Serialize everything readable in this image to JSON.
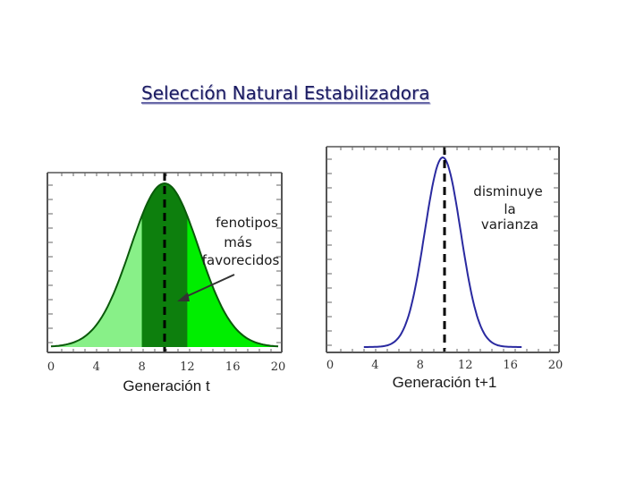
{
  "slide": {
    "title": "Selección Natural Estabilizadora"
  },
  "chart_data": [
    {
      "type": "area",
      "xlabel": "Generación t",
      "ylabel": "",
      "xlim": [
        0,
        20
      ],
      "xticks": [
        "0",
        "4",
        "8",
        "12",
        "16",
        "20"
      ],
      "mean": 10,
      "sd": 3,
      "marked_line_x": 10,
      "regions": [
        {
          "name": "outer-tails",
          "from": 0,
          "to": 20,
          "color": "#00ee00"
        },
        {
          "name": "left-flank",
          "from": 0,
          "to": 8,
          "color": "#88f088"
        },
        {
          "name": "center-band",
          "from": 8,
          "to": 12,
          "color": "#0d7f0d"
        }
      ],
      "annotation": {
        "lines": [
          "fenotipos",
          "más",
          "favorecidos"
        ],
        "arrow_to_x": 11
      },
      "colors": {
        "curve": "#0a5a0a",
        "dashed": "#000000"
      }
    },
    {
      "type": "line",
      "xlabel": "Generación t+1",
      "ylabel": "",
      "xlim": [
        0,
        20
      ],
      "xticks": [
        "0",
        "4",
        "8",
        "12",
        "16",
        "20"
      ],
      "mean": 10,
      "sd": 1.6,
      "curve_range": [
        3,
        17
      ],
      "marked_line_x": 10,
      "annotation": {
        "lines": [
          "disminuye",
          "la",
          "varianza"
        ]
      },
      "colors": {
        "curve": "#2a2aa0",
        "dashed": "#000000"
      }
    }
  ]
}
